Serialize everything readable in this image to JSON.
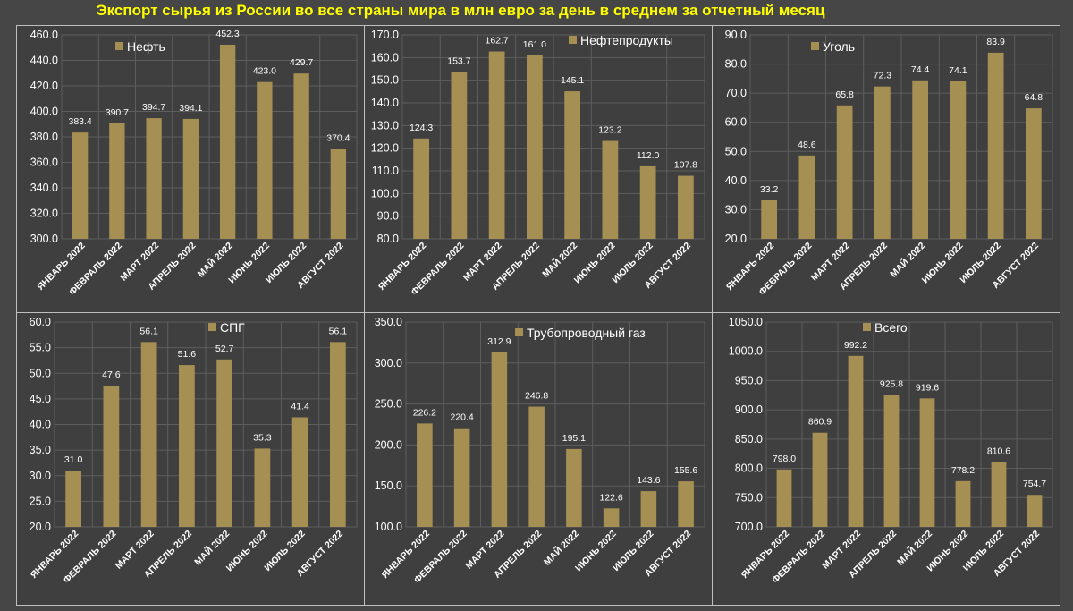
{
  "title": "Экспорт сырья из России во все страны мира в млн евро за день в среднем за отчетный месяц",
  "colors": {
    "bar": "#a58f52",
    "grid": "#5e5e5e",
    "text": "#ffffff",
    "title": "#ffff00",
    "panel_bg": "#3f3f3f"
  },
  "chart_data": [
    {
      "type": "bar",
      "legend": "Нефть",
      "legend_position": "top-left",
      "categories": [
        "ЯНВАРЬ 2022",
        "ФЕВРАЛЬ 2022",
        "МАРТ 2022",
        "АПРЕЛЬ 2022",
        "МАЙ 2022",
        "ИЮНЬ 2022",
        "ИЮЛЬ 2022",
        "АВГУСТ 2022"
      ],
      "values": [
        383.4,
        390.7,
        394.7,
        394.1,
        452.3,
        423.0,
        429.7,
        370.4
      ],
      "value_labels": [
        "383.4",
        "390.7",
        "394.7",
        "394.1",
        "452.3",
        "423.0",
        "429.7",
        "370.4"
      ],
      "ylim": [
        300,
        460
      ],
      "yticks": [
        "300.0",
        "320.0",
        "340.0",
        "360.0",
        "380.0",
        "400.0",
        "420.0",
        "440.0",
        "460.0"
      ],
      "grid": true
    },
    {
      "type": "bar",
      "legend": "Нефтепродукты",
      "legend_position": "top-right",
      "categories": [
        "ЯНВАРЬ 2022",
        "ФЕВРАЛЬ 2022",
        "МАРТ 2022",
        "АПРЕЛЬ 2022",
        "МАЙ 2022",
        "ИЮНЬ 2022",
        "ИЮЛЬ 2022",
        "АВГУСТ 2022"
      ],
      "values": [
        124.3,
        153.7,
        162.7,
        161.0,
        145.1,
        123.2,
        112.0,
        107.8
      ],
      "value_labels": [
        "124.3",
        "153.7",
        "162.7",
        "161.0",
        "145.1",
        "123.2",
        "112.0",
        "107.8"
      ],
      "ylim": [
        80,
        170
      ],
      "yticks": [
        "80.0",
        "90.0",
        "100.0",
        "110.0",
        "120.0",
        "130.0",
        "140.0",
        "150.0",
        "160.0",
        "170.0"
      ],
      "grid": true
    },
    {
      "type": "bar",
      "legend": "Уголь",
      "legend_position": "top-left",
      "categories": [
        "ЯНВАРЬ 2022",
        "ФЕВРАЛЬ 2022",
        "МАРТ 2022",
        "АПРЕЛЬ 2022",
        "МАЙ 2022",
        "ИЮНЬ 2022",
        "ИЮЛЬ 2022",
        "АВГУСТ 2022"
      ],
      "values": [
        33.2,
        48.6,
        65.8,
        72.3,
        74.4,
        74.1,
        83.9,
        64.8
      ],
      "value_labels": [
        "33.2",
        "48.6",
        "65.8",
        "72.3",
        "74.4",
        "74.1",
        "83.9",
        "64.8"
      ],
      "ylim": [
        20,
        90
      ],
      "yticks": [
        "20.0",
        "30.0",
        "40.0",
        "50.0",
        "60.0",
        "70.0",
        "80.0",
        "90.0"
      ],
      "grid": true
    },
    {
      "type": "bar",
      "legend": "СПГ",
      "legend_position": "top-center",
      "categories": [
        "ЯНВАРЬ 2022",
        "ФЕВРАЛЬ 2022",
        "МАРТ 2022",
        "АПРЕЛЬ 2022",
        "МАЙ 2022",
        "ИЮНЬ 2022",
        "ИЮЛЬ 2022",
        "АВГУСТ 2022"
      ],
      "values": [
        31.0,
        47.6,
        56.1,
        51.6,
        52.7,
        35.3,
        41.4,
        56.1
      ],
      "value_labels": [
        "31.0",
        "47.6",
        "56.1",
        "51.6",
        "52.7",
        "35.3",
        "41.4",
        "56.1"
      ],
      "ylim": [
        20,
        60
      ],
      "yticks": [
        "20.0",
        "25.0",
        "30.0",
        "35.0",
        "40.0",
        "45.0",
        "50.0",
        "55.0",
        "60.0"
      ],
      "grid": true
    },
    {
      "type": "bar",
      "legend": "Трубопроводный газ",
      "legend_position": "top-center",
      "categories": [
        "ЯНВАРЬ 2022",
        "ФЕВРАЛЬ 2022",
        "МАРТ 2022",
        "АПРЕЛЬ 2022",
        "МАЙ 2022",
        "ИЮНЬ 2022",
        "ИЮЛЬ 2022",
        "АВГУСТ 2022"
      ],
      "values": [
        226.2,
        220.4,
        312.9,
        246.8,
        195.1,
        122.6,
        143.6,
        155.6
      ],
      "value_labels": [
        "226.2",
        "220.4",
        "312.9",
        "246.8",
        "195.1",
        "122.6",
        "143.6",
        "155.6"
      ],
      "ylim": [
        100,
        350
      ],
      "yticks": [
        "100.0",
        "150.0",
        "200.0",
        "250.0",
        "300.0",
        "350.0"
      ],
      "grid": true
    },
    {
      "type": "bar",
      "legend": "Всего",
      "legend_position": "top-left",
      "categories": [
        "ЯНВАРЬ 2022",
        "ФЕВРАЛЬ 2022",
        "МАРТ 2022",
        "АПРЕЛЬ 2022",
        "МАЙ 2022",
        "ИЮНЬ 2022",
        "ИЮЛЬ 2022",
        "АВГУСТ 2022"
      ],
      "values": [
        798.0,
        860.9,
        992.2,
        925.8,
        919.6,
        778.2,
        810.6,
        754.7
      ],
      "value_labels": [
        "798.0",
        "860.9",
        "992.2",
        "925.8",
        "919.6",
        "778.2",
        "810.6",
        "754.7"
      ],
      "ylim": [
        700,
        1050
      ],
      "yticks": [
        "700.0",
        "750.0",
        "800.0",
        "850.0",
        "900.0",
        "950.0",
        "1000.0",
        "1050.0"
      ],
      "grid": true
    }
  ]
}
